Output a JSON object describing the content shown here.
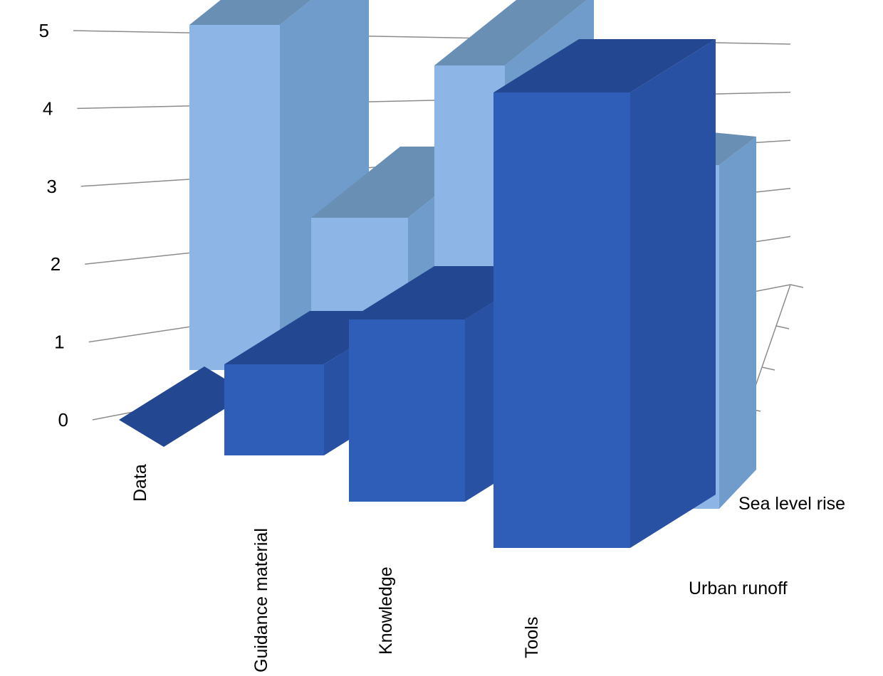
{
  "chart_data": {
    "type": "bar",
    "subtype": "3d-clustered-column",
    "categories": [
      "Data",
      "Guidance material",
      "Knowledge",
      "Tools"
    ],
    "series": [
      {
        "name": "Sea level rise",
        "values": [
          5,
          2,
          4,
          4
        ]
      },
      {
        "name": "Urban runoff",
        "values": [
          0,
          1,
          2,
          5
        ]
      }
    ],
    "ylim": [
      0,
      5
    ],
    "yticks": [
      "0",
      "1",
      "2",
      "3",
      "4",
      "5"
    ],
    "grid": true,
    "legend": "none",
    "colors": {
      "Sea level rise": {
        "front": "#8db6e6",
        "side": "#6f9ccb",
        "top": "#6a8fb5"
      },
      "Urban runoff": {
        "front": "#2e5eb8",
        "side": "#2850a3",
        "top": "#234790"
      }
    }
  }
}
